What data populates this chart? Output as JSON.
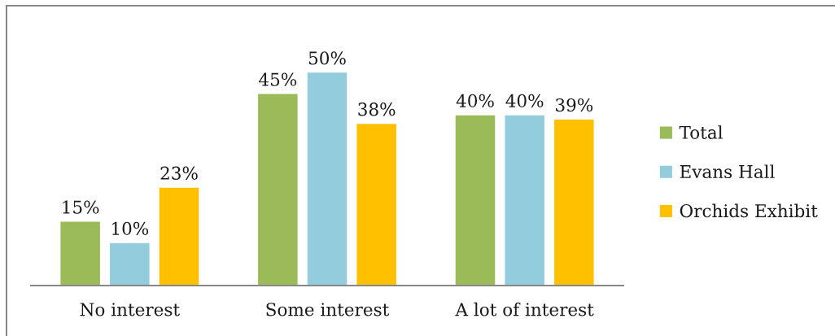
{
  "chart_data": {
    "type": "bar",
    "categories": [
      "No interest",
      "Some interest",
      "A lot of interest"
    ],
    "series": [
      {
        "name": "Total",
        "color": "#9bbb59",
        "values": [
          15,
          45,
          40
        ],
        "value_labels": [
          "15%",
          "45%",
          "40%"
        ]
      },
      {
        "name": "Evans Hall",
        "color": "#93cddd",
        "values": [
          10,
          50,
          40
        ],
        "value_labels": [
          "10%",
          "50%",
          "40%"
        ]
      },
      {
        "name": "Orchids Exhibit",
        "color": "#ffc000",
        "values": [
          23,
          38,
          39
        ],
        "value_labels": [
          "23%",
          "38%",
          "39%"
        ]
      }
    ],
    "tick_labels": "x",
    "legend": "right"
  }
}
